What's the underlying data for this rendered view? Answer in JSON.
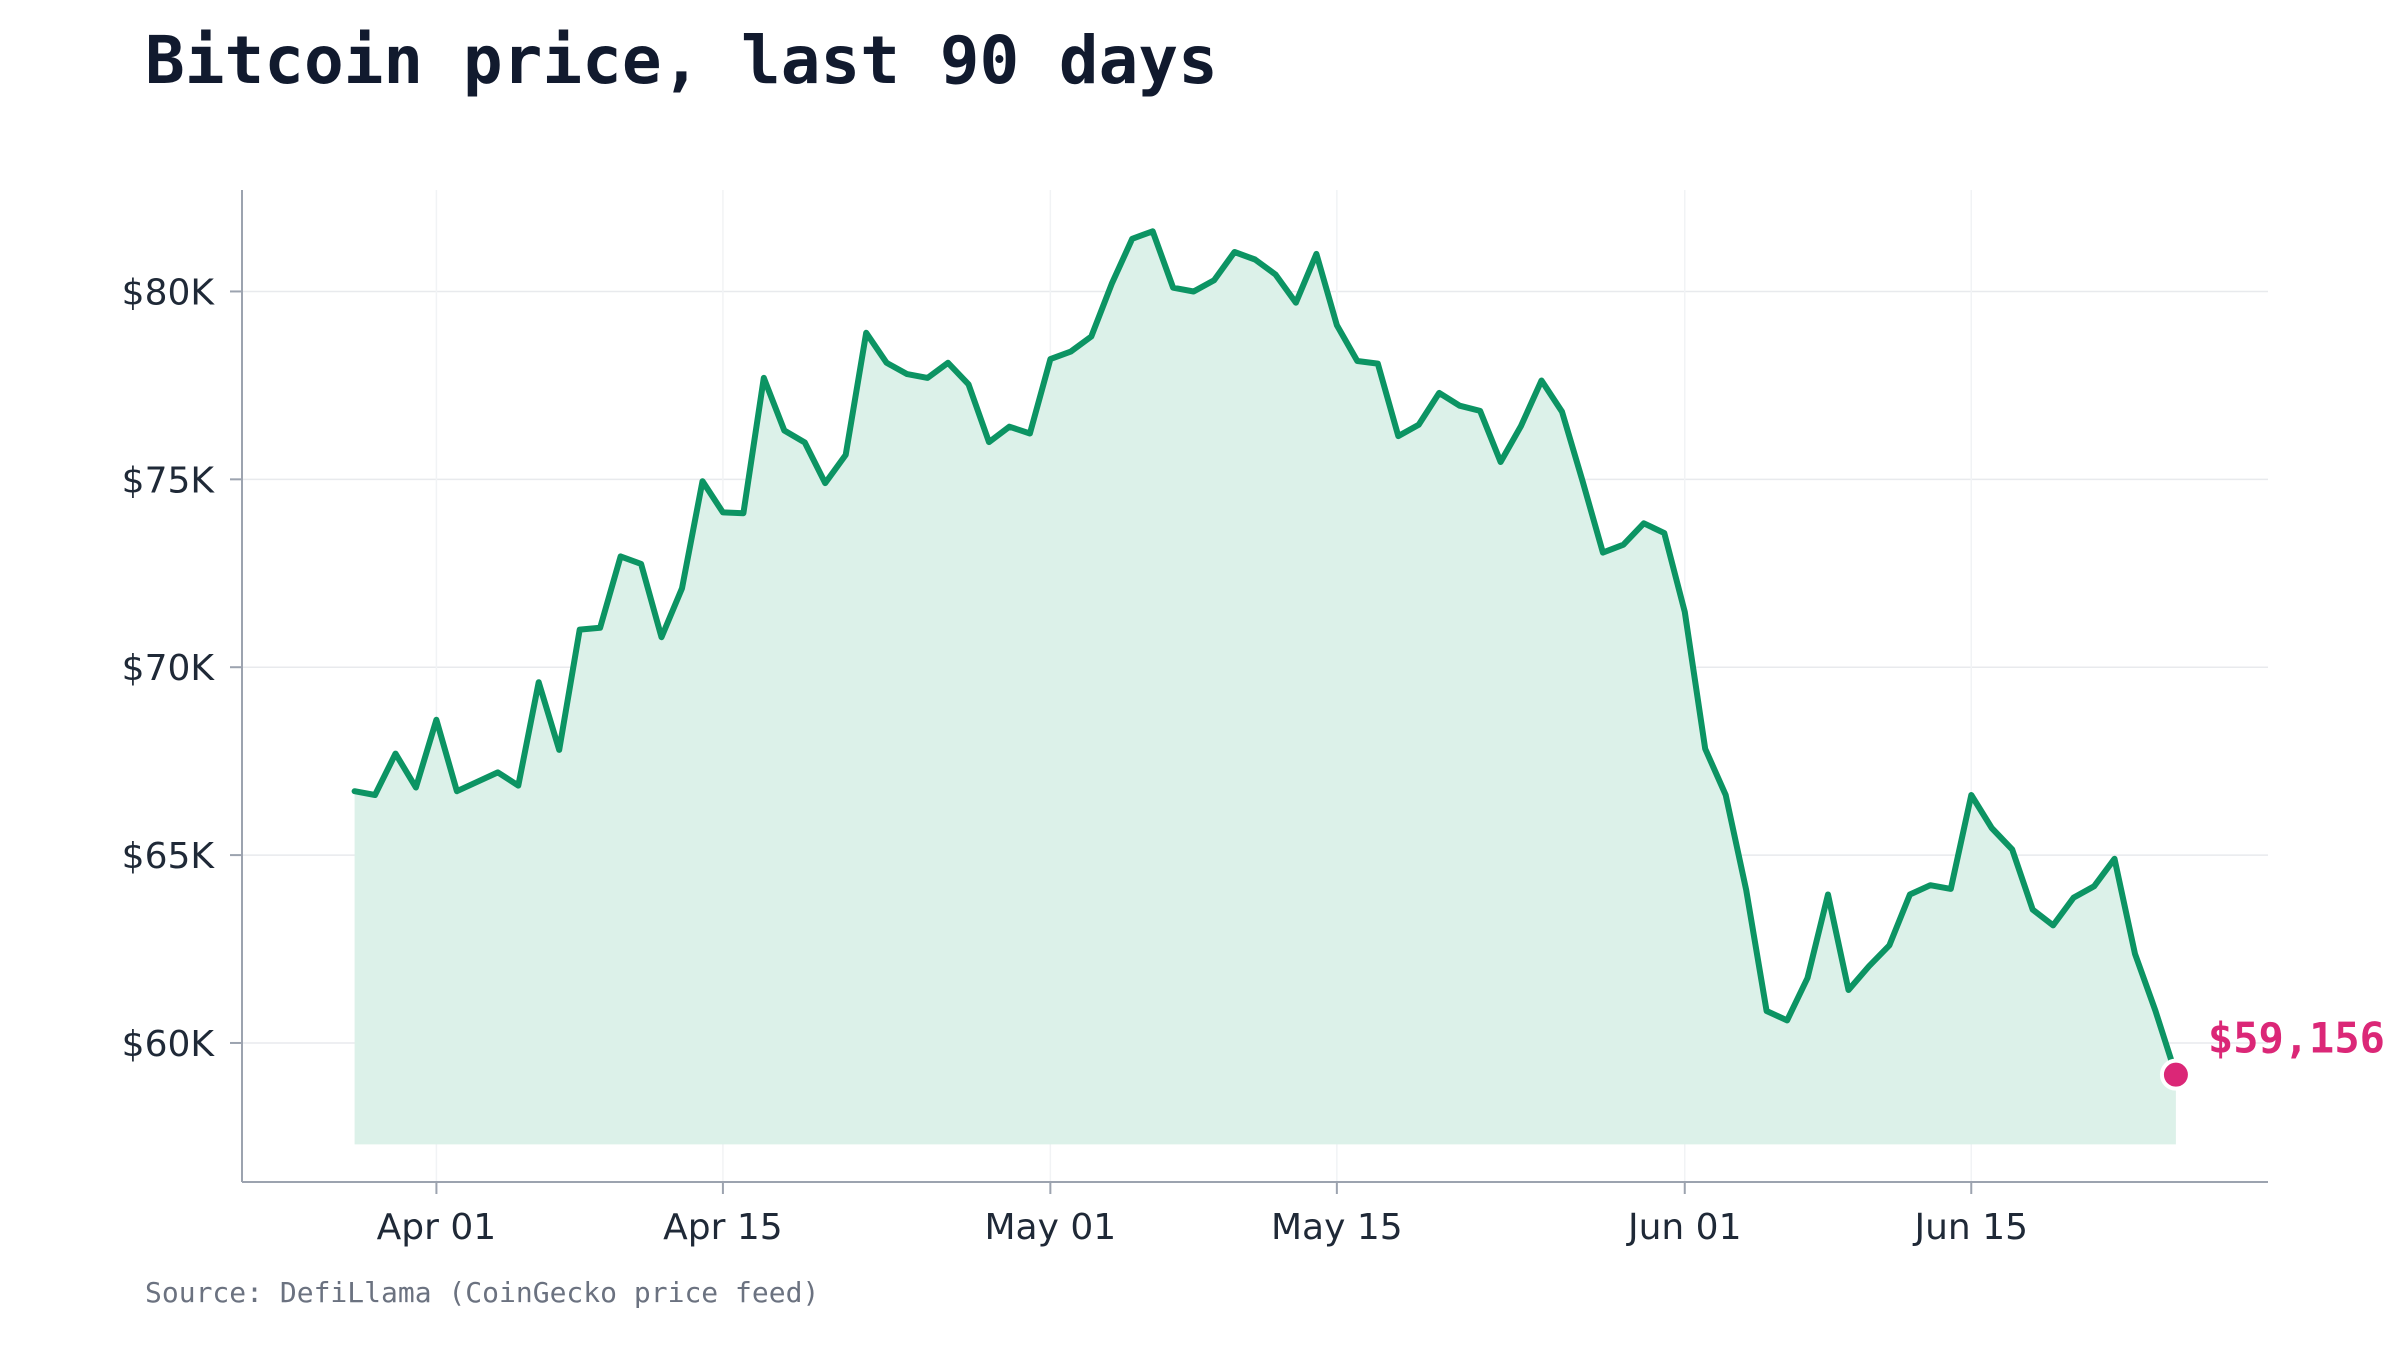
{
  "header": {
    "title": "Bitcoin price, last 90 days"
  },
  "footer": {
    "source": "Source: DefiLlama (CoinGecko price feed)"
  },
  "colors": {
    "line": "#0c9463",
    "area": "#dcf1e9",
    "marker": "#db2777",
    "grid": "#e8eaed",
    "axis": "#9ca3af"
  },
  "chart_data": {
    "type": "area",
    "title": "Bitcoin price, last 90 days",
    "xlabel": "",
    "ylabel": "",
    "x_type": "date",
    "ylim": [
      56300,
      82700
    ],
    "grid": true,
    "y_ticks": [
      {
        "value": 60000,
        "label": "$60K"
      },
      {
        "value": 65000,
        "label": "$65K"
      },
      {
        "value": 70000,
        "label": "$70K"
      },
      {
        "value": 75000,
        "label": "$75K"
      },
      {
        "value": 80000,
        "label": "$80K"
      }
    ],
    "x_ticks": [
      {
        "date": "2024-04-01",
        "label": "Apr 01"
      },
      {
        "date": "2024-04-15",
        "label": "Apr 15"
      },
      {
        "date": "2024-05-01",
        "label": "May 01"
      },
      {
        "date": "2024-05-15",
        "label": "May 15"
      },
      {
        "date": "2024-06-01",
        "label": "Jun 01"
      },
      {
        "date": "2024-06-15",
        "label": "Jun 15"
      }
    ],
    "x": [
      "2024-03-28",
      "2024-03-29",
      "2024-03-30",
      "2024-03-31",
      "2024-04-01",
      "2024-04-02",
      "2024-04-03",
      "2024-04-04",
      "2024-04-05",
      "2024-04-06",
      "2024-04-07",
      "2024-04-08",
      "2024-04-09",
      "2024-04-10",
      "2024-04-11",
      "2024-04-12",
      "2024-04-13",
      "2024-04-14",
      "2024-04-15",
      "2024-04-16",
      "2024-04-17",
      "2024-04-18",
      "2024-04-19",
      "2024-04-20",
      "2024-04-21",
      "2024-04-22",
      "2024-04-23",
      "2024-04-24",
      "2024-04-25",
      "2024-04-26",
      "2024-04-27",
      "2024-04-28",
      "2024-04-29",
      "2024-04-30",
      "2024-05-01",
      "2024-05-02",
      "2024-05-03",
      "2024-05-04",
      "2024-05-05",
      "2024-05-06",
      "2024-05-07",
      "2024-05-08",
      "2024-05-09",
      "2024-05-10",
      "2024-05-11",
      "2024-05-12",
      "2024-05-13",
      "2024-05-14",
      "2024-05-15",
      "2024-05-16",
      "2024-05-17",
      "2024-05-18",
      "2024-05-19",
      "2024-05-20",
      "2024-05-21",
      "2024-05-22",
      "2024-05-23",
      "2024-05-24",
      "2024-05-25",
      "2024-05-26",
      "2024-05-27",
      "2024-05-28",
      "2024-05-29",
      "2024-05-30",
      "2024-05-31",
      "2024-06-01",
      "2024-06-02",
      "2024-06-03",
      "2024-06-04",
      "2024-06-05",
      "2024-06-06",
      "2024-06-07",
      "2024-06-08",
      "2024-06-09",
      "2024-06-10",
      "2024-06-11",
      "2024-06-12",
      "2024-06-13",
      "2024-06-14",
      "2024-06-15",
      "2024-06-16",
      "2024-06-17",
      "2024-06-18",
      "2024-06-19",
      "2024-06-20",
      "2024-06-21",
      "2024-06-22",
      "2024-06-23",
      "2024-06-24",
      "2024-06-25"
    ],
    "series": [
      {
        "values": [
          66700,
          66600,
          67700,
          66800,
          68600,
          66700,
          66950,
          67200,
          66850,
          69600,
          67800,
          71000,
          71050,
          72950,
          72750,
          70800,
          72100,
          74950,
          74120,
          74100,
          77700,
          76300,
          75980,
          74900,
          75650,
          78900,
          78100,
          77800,
          77700,
          78100,
          77530,
          75990,
          76400,
          76220,
          78200,
          78400,
          78800,
          80200,
          81400,
          81600,
          80100,
          80000,
          80300,
          81050,
          80850,
          80450,
          79700,
          81000,
          79100,
          78150,
          78080,
          76150,
          76450,
          77300,
          76960,
          76820,
          75460,
          76420,
          77630,
          76800,
          74970,
          73050,
          73260,
          73830,
          73570,
          71470,
          67830,
          66600,
          64070,
          60850,
          60600,
          61730,
          63950,
          61410,
          62040,
          62600,
          63950,
          64200,
          64100,
          66600,
          65720,
          65150,
          63550,
          63130,
          63870,
          64170,
          64900,
          62370,
          60860,
          59156
        ]
      }
    ],
    "last_value": 59156,
    "last_label": "$59,156"
  }
}
